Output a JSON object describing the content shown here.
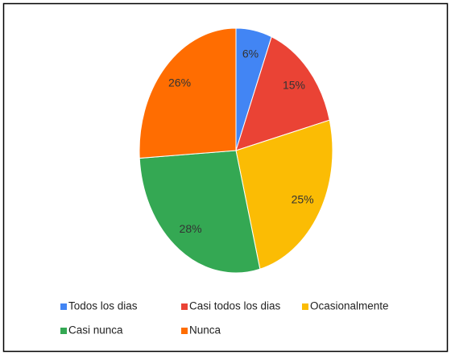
{
  "chart_data": {
    "type": "pie",
    "categories": [
      "Todos los dias",
      "Casi todos los dias",
      "Ocasionalmente",
      "Casi nunca",
      "Nunca"
    ],
    "values": [
      6,
      15,
      25,
      28,
      26
    ],
    "value_labels": [
      "6%",
      "15%",
      "25%",
      "28%",
      "26%"
    ],
    "colors": [
      "#4285f4",
      "#ea4335",
      "#fbbc04",
      "#34a853",
      "#ff6d01"
    ]
  }
}
